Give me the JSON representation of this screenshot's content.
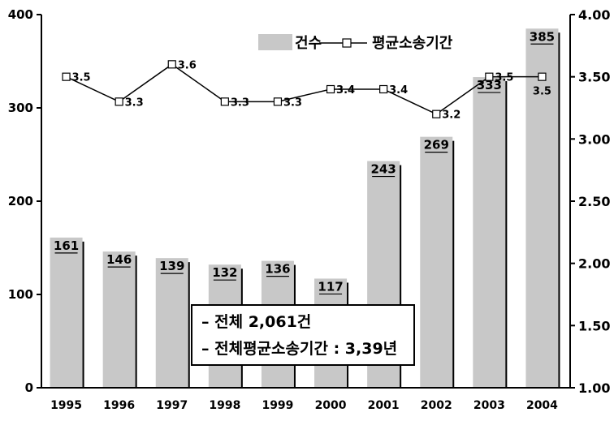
{
  "chart_data": {
    "type": "bar",
    "categories": [
      "1995",
      "1996",
      "1997",
      "1998",
      "1999",
      "2000",
      "2001",
      "2002",
      "2003",
      "2004"
    ],
    "series": [
      {
        "name": "건수",
        "type": "bar",
        "axis": "left",
        "values": [
          161,
          146,
          139,
          132,
          136,
          117,
          243,
          269,
          333,
          385
        ],
        "labels": [
          "161",
          "146",
          "139",
          "132",
          "136",
          "117",
          "243",
          "269",
          "333",
          "385"
        ],
        "color": "#c8c8c8"
      },
      {
        "name": "평균소송기간",
        "type": "line",
        "axis": "right",
        "values": [
          3.5,
          3.3,
          3.6,
          3.3,
          3.3,
          3.4,
          3.4,
          3.2,
          3.5,
          3.5
        ],
        "labels": [
          "3.5",
          "3.3",
          "3.6",
          "3.3",
          "3.3",
          "3.4",
          "3.4",
          "3.2",
          "3.5",
          "3.5"
        ],
        "color": "#000000"
      }
    ],
    "y_left": {
      "lim": [
        0,
        400
      ],
      "ticks": [
        "0",
        "100",
        "200",
        "300",
        "400"
      ]
    },
    "y_right": {
      "lim": [
        1.0,
        4.0
      ],
      "ticks": [
        "1.00",
        "1.50",
        "2.00",
        "2.50",
        "3.00",
        "3.50",
        "4.00"
      ]
    },
    "legend": {
      "position": "top-right",
      "bar_label": "건수",
      "line_label": "평균소송기간"
    },
    "annotation": {
      "line1": "– 전체 2,061건",
      "line2": "– 전체평균소송기간 : 3,39년"
    },
    "grid": false
  }
}
